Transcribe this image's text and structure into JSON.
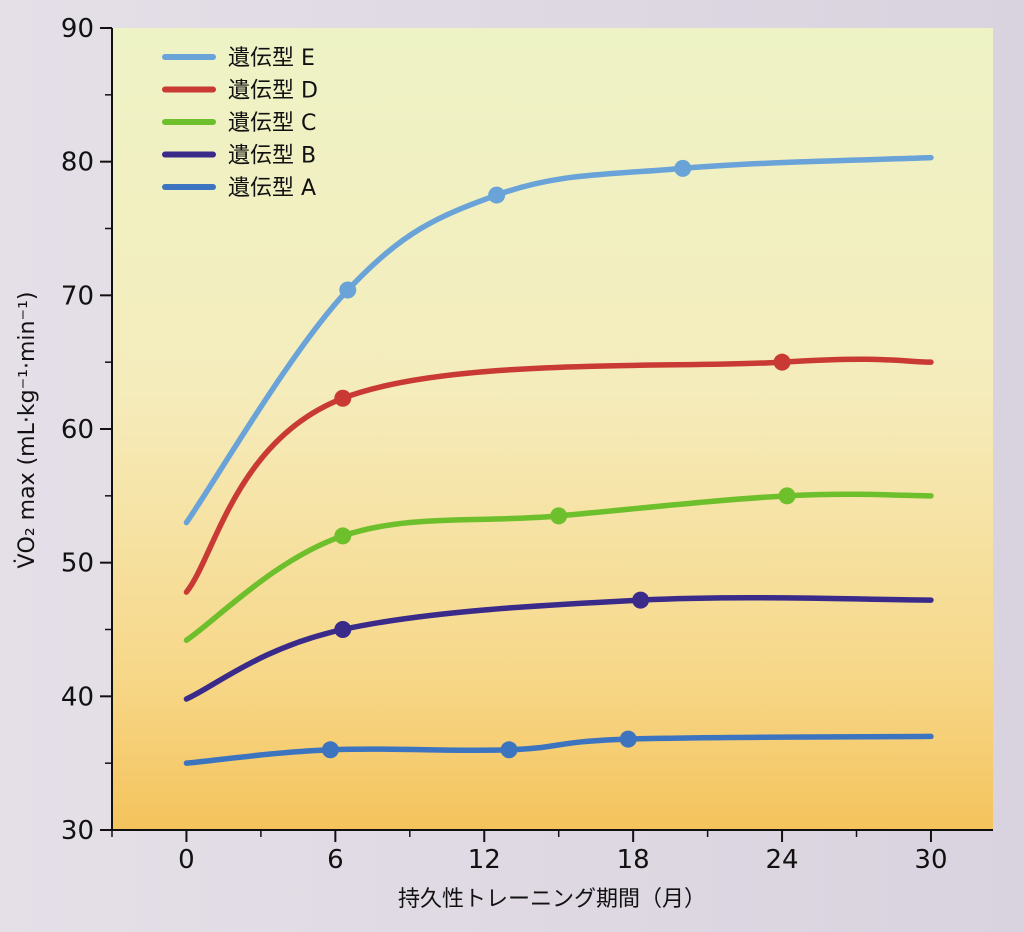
{
  "chart_data": {
    "type": "line",
    "xlabel": "持久性トレーニング期間（月）",
    "ylabel": "V̇O₂ max (mL·kg⁻¹·min⁻¹)",
    "x_ticks": [
      "0",
      "6",
      "12",
      "18",
      "24",
      "30"
    ],
    "y_ticks": [
      "30",
      "40",
      "50",
      "60",
      "70",
      "80",
      "90"
    ],
    "xlim": [
      -3,
      32.5
    ],
    "ylim": [
      30,
      90
    ],
    "legend_position": "top-left",
    "series": [
      {
        "name": "遺伝型 E",
        "color": "#6aa3d8",
        "points": [
          [
            0,
            53
          ],
          [
            6.5,
            70.4
          ],
          [
            12.5,
            77.5
          ],
          [
            20,
            79.5
          ],
          [
            30,
            80.3
          ]
        ],
        "markers": [
          [
            6.5,
            70.4
          ],
          [
            12.5,
            77.5
          ],
          [
            20,
            79.5
          ]
        ]
      },
      {
        "name": "遺伝型 D",
        "color": "#c93a34",
        "points": [
          [
            0,
            47.8
          ],
          [
            6.3,
            62.3
          ],
          [
            24,
            65
          ],
          [
            30,
            65
          ]
        ],
        "markers": [
          [
            6.3,
            62.3
          ],
          [
            24,
            65
          ]
        ]
      },
      {
        "name": "遺伝型 C",
        "color": "#6dbf2c",
        "points": [
          [
            0,
            44.2
          ],
          [
            6.3,
            52
          ],
          [
            15,
            53.5
          ],
          [
            24.2,
            55
          ],
          [
            30,
            55
          ]
        ],
        "markers": [
          [
            6.3,
            52
          ],
          [
            15,
            53.5
          ],
          [
            24.2,
            55
          ]
        ]
      },
      {
        "name": "遺伝型 B",
        "color": "#3a2a8a",
        "points": [
          [
            0,
            39.8
          ],
          [
            6.3,
            45
          ],
          [
            18.3,
            47.2
          ],
          [
            30,
            47.2
          ]
        ],
        "markers": [
          [
            6.3,
            45
          ],
          [
            18.3,
            47.2
          ]
        ]
      },
      {
        "name": "遺伝型 A",
        "color": "#3d74bf",
        "points": [
          [
            0,
            35
          ],
          [
            5.8,
            36
          ],
          [
            13,
            36
          ],
          [
            17.8,
            36.8
          ],
          [
            30,
            37
          ]
        ],
        "markers": [
          [
            5.8,
            36
          ],
          [
            13,
            36
          ],
          [
            17.8,
            36.8
          ]
        ]
      }
    ]
  }
}
